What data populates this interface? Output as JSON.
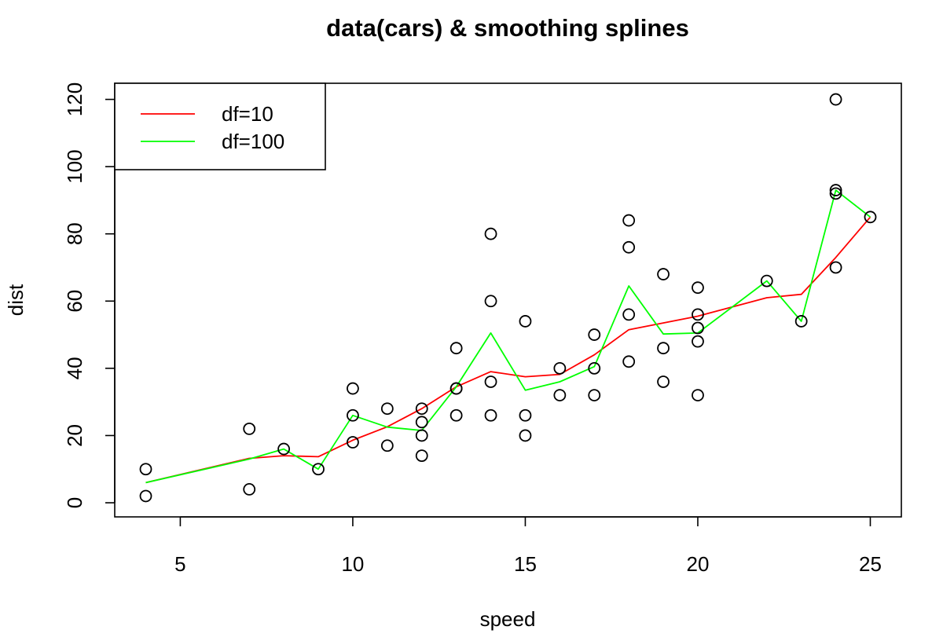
{
  "chart_data": {
    "type": "scatter",
    "title": "data(cars) & smoothing splines",
    "xlabel": "speed",
    "ylabel": "dist",
    "xlim": [
      3.1,
      25.9
    ],
    "ylim": [
      -4.2,
      124.8
    ],
    "x_ticks": [
      5,
      10,
      15,
      20,
      25
    ],
    "y_ticks": [
      0,
      20,
      40,
      60,
      80,
      100,
      120
    ],
    "grid": false,
    "legend_position": "top-left",
    "points": {
      "x": [
        4,
        4,
        7,
        7,
        8,
        9,
        10,
        10,
        10,
        11,
        11,
        12,
        12,
        12,
        12,
        13,
        13,
        13,
        13,
        14,
        14,
        14,
        14,
        15,
        15,
        15,
        16,
        16,
        17,
        17,
        17,
        18,
        18,
        18,
        18,
        19,
        19,
        19,
        20,
        20,
        20,
        20,
        20,
        22,
        23,
        24,
        24,
        24,
        24,
        25
      ],
      "y": [
        2,
        10,
        4,
        22,
        16,
        10,
        18,
        26,
        34,
        17,
        28,
        14,
        20,
        24,
        28,
        26,
        34,
        34,
        46,
        26,
        36,
        60,
        80,
        20,
        26,
        54,
        32,
        40,
        32,
        40,
        50,
        42,
        56,
        76,
        84,
        36,
        46,
        68,
        32,
        48,
        52,
        56,
        64,
        66,
        54,
        70,
        92,
        93,
        120,
        85
      ]
    },
    "series": [
      {
        "name": "df=10",
        "color": "#ff0000",
        "x": [
          4,
          7,
          8,
          9,
          10,
          11,
          12,
          13,
          14,
          15,
          16,
          17,
          18,
          19,
          20,
          22,
          23,
          24,
          25
        ],
        "y": [
          6,
          13.2,
          14,
          13.7,
          18.6,
          22.6,
          28,
          34.5,
          39,
          37.5,
          38.2,
          44,
          51.5,
          53.5,
          55.5,
          61,
          62,
          73,
          85
        ]
      },
      {
        "name": "df=100",
        "color": "#00ff00",
        "x": [
          4,
          7,
          8,
          9,
          10,
          11,
          12,
          13,
          14,
          15,
          16,
          17,
          18,
          19,
          20,
          22,
          23,
          24,
          25
        ],
        "y": [
          6,
          13,
          16,
          10,
          26,
          22.5,
          21.5,
          34.5,
          50.5,
          33.5,
          36,
          40.5,
          64.5,
          50.2,
          50.5,
          66,
          54,
          93,
          85
        ]
      }
    ]
  }
}
